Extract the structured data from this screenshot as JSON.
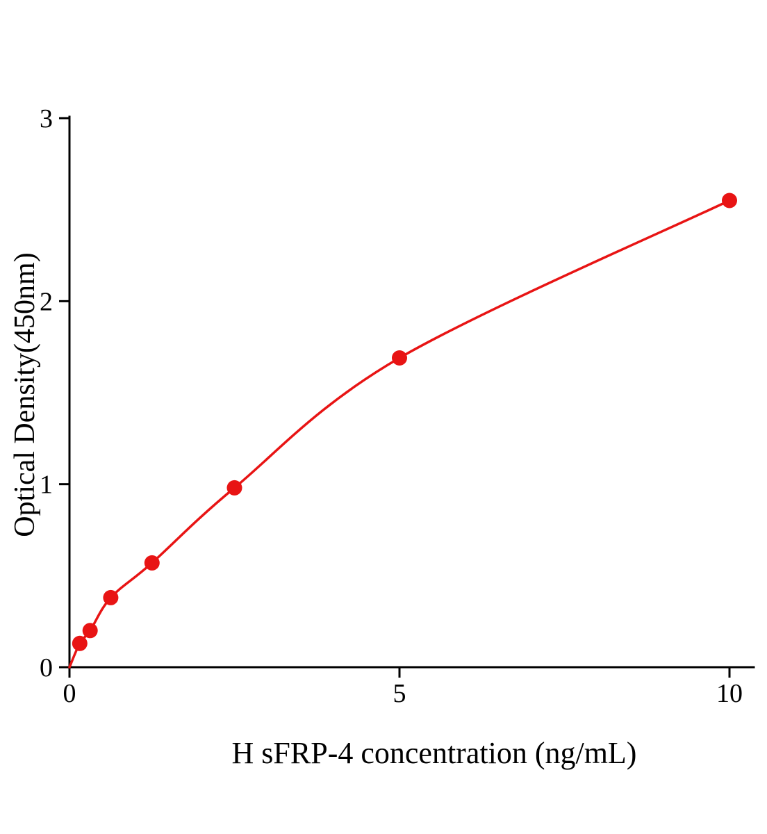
{
  "page": {
    "background_color": "#ffffff"
  },
  "chart_data": {
    "type": "scatter",
    "title": "",
    "xlabel": "H sFRP-4 concentration (ng/mL)",
    "ylabel": "Optical Density(450nm)",
    "x": [
      0.156,
      0.313,
      0.625,
      1.25,
      2.5,
      5,
      10
    ],
    "y": [
      0.13,
      0.2,
      0.38,
      0.57,
      0.98,
      1.69,
      2.55
    ],
    "curve_points": [
      [
        0,
        0
      ],
      [
        0.156,
        0.13
      ],
      [
        0.313,
        0.2
      ],
      [
        0.625,
        0.38
      ],
      [
        1.25,
        0.57
      ],
      [
        2.5,
        0.98
      ],
      [
        5,
        1.69
      ],
      [
        10,
        2.55
      ]
    ],
    "xlim": [
      0,
      10.4
    ],
    "ylim": [
      0,
      3
    ],
    "xticks": [
      0,
      5,
      10
    ],
    "yticks": [
      0,
      1,
      2,
      3
    ],
    "grid": false,
    "legend": null,
    "series_color": "#e81414",
    "axis_color": "#000000",
    "marker_radius": 11,
    "line_width": 3.5
  }
}
